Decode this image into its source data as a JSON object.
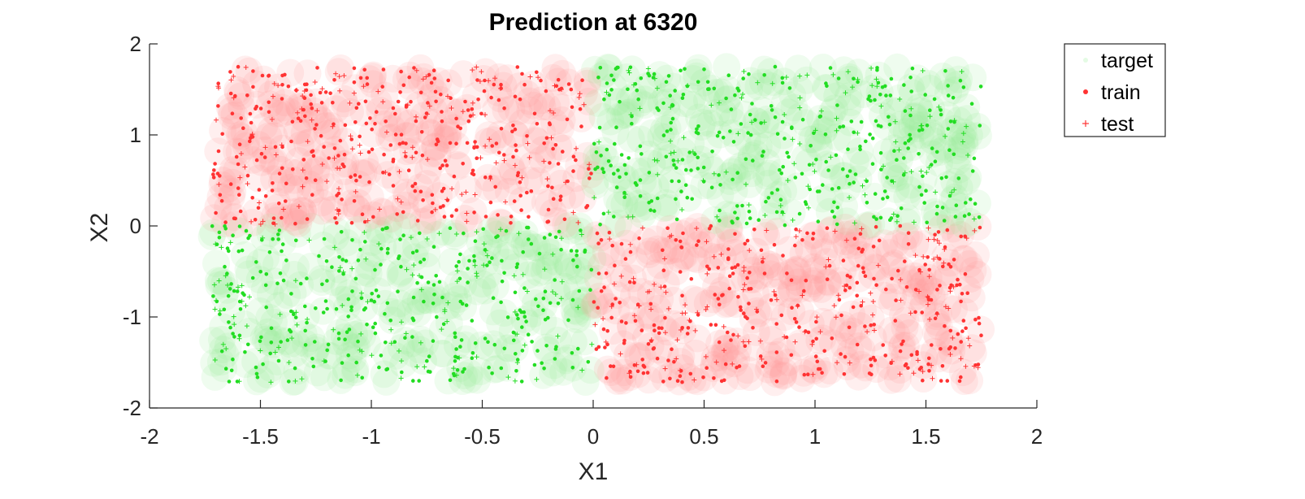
{
  "chart_data": {
    "type": "scatter",
    "title": "Prediction at 6320",
    "xlabel": "X1",
    "ylabel": "X2",
    "xlim": [
      -2,
      2
    ],
    "ylim": [
      -2,
      2
    ],
    "xticks": [
      -2,
      -1.5,
      -1,
      -0.5,
      0,
      0.5,
      1,
      1.5,
      2
    ],
    "yticks": [
      -2,
      -1,
      0,
      1,
      2
    ],
    "grid": false,
    "legend_position": "outside-top-right",
    "colors": {
      "class_pos": "#ff3333",
      "class_neg": "#22dd22",
      "halo_pos": "#ff9999",
      "halo_neg": "#99ee99"
    },
    "point_domain": {
      "x": [
        -1.72,
        1.75
      ],
      "y": [
        -1.72,
        1.75
      ]
    },
    "class_rule": "red where X1*X2 < 0, green where X1*X2 > 0",
    "series": [
      {
        "name": "target",
        "marker": "circle-halo",
        "count_estimate": 1300
      },
      {
        "name": "train",
        "marker": "dot",
        "count_estimate": 1300
      },
      {
        "name": "test",
        "marker": "plus",
        "count_estimate": 500
      }
    ]
  }
}
